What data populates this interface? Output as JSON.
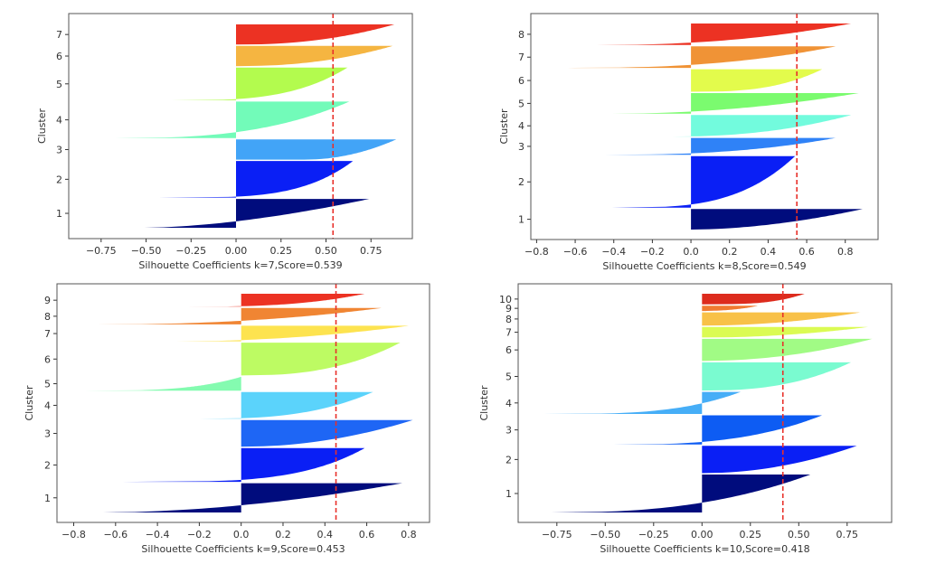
{
  "chart_data": [
    {
      "type": "silhouette",
      "k": 7,
      "score": 0.539,
      "xlabel": "Silhouette Coefficients k=7,Score=0.539",
      "ylabel": "Cluster",
      "xlim": [
        -0.93,
        0.98
      ],
      "xticks": [
        -0.75,
        -0.5,
        -0.25,
        0.0,
        0.25,
        0.5,
        0.75
      ],
      "xtick_labels": [
        "−0.75",
        "−0.50",
        "−0.25",
        "0.00",
        "0.25",
        "0.50",
        "0.75"
      ],
      "clusters": [
        {
          "label": "1",
          "color": "#000c7d",
          "size": 30,
          "min": -0.51,
          "max": 0.74,
          "shape": 0.6
        },
        {
          "label": "2",
          "color": "#0a1ff5",
          "size": 38,
          "min": -0.43,
          "max": 0.65,
          "shape": 0.25
        },
        {
          "label": "3",
          "color": "#42a4f7",
          "size": 21,
          "min": 0.38,
          "max": 0.89,
          "shape": 0.5
        },
        {
          "label": "4",
          "color": "#72fbb9",
          "size": 38,
          "min": -0.71,
          "max": 0.63,
          "shape": 0.35
        },
        {
          "label": "5",
          "color": "#b3fb4e",
          "size": 34,
          "min": -0.36,
          "max": 0.62,
          "shape": 0.3
        },
        {
          "label": "6",
          "color": "#f5b541",
          "size": 21,
          "min": 0.0,
          "max": 0.87,
          "shape": 0.45
        },
        {
          "label": "7",
          "color": "#ec3223",
          "size": 21,
          "min": 0.0,
          "max": 0.88,
          "shape": 0.45
        }
      ]
    },
    {
      "type": "silhouette",
      "k": 8,
      "score": 0.549,
      "xlabel": "Silhouette Coefficients k=8,Score=0.549",
      "ylabel": "Cluster",
      "xlim": [
        -0.83,
        0.97
      ],
      "xticks": [
        -0.8,
        -0.6,
        -0.4,
        -0.2,
        0.0,
        0.2,
        0.4,
        0.6,
        0.8
      ],
      "xtick_labels": [
        "−0.8",
        "−0.6",
        "−0.4",
        "−0.2",
        "0.0",
        "0.2",
        "0.4",
        "0.6",
        "0.8"
      ],
      "clusters": [
        {
          "label": "1",
          "color": "#000c7d",
          "size": 22,
          "min": 0.0,
          "max": 0.89,
          "shape": 0.55
        },
        {
          "label": "2",
          "color": "#0a1ff5",
          "size": 55,
          "min": -0.41,
          "max": 0.54,
          "shape": 0.3
        },
        {
          "label": "3",
          "color": "#2f82f7",
          "size": 18,
          "min": -0.45,
          "max": 0.75,
          "shape": 0.4
        },
        {
          "label": "4",
          "color": "#72fbdd",
          "size": 23,
          "min": -0.1,
          "max": 0.83,
          "shape": 0.45
        },
        {
          "label": "5",
          "color": "#7bfb6f",
          "size": 22,
          "min": -0.41,
          "max": 0.87,
          "shape": 0.5
        },
        {
          "label": "6",
          "color": "#e3fb4c",
          "size": 24,
          "min": 0.0,
          "max": 0.68,
          "shape": 0.35
        },
        {
          "label": "7",
          "color": "#f09336",
          "size": 23,
          "min": -0.64,
          "max": 0.75,
          "shape": 0.4
        },
        {
          "label": "8",
          "color": "#ec3223",
          "size": 23,
          "min": -0.49,
          "max": 0.83,
          "shape": 0.45
        }
      ]
    },
    {
      "type": "silhouette",
      "k": 9,
      "score": 0.453,
      "xlabel": "Silhouette Coefficients k=9,Score=0.453",
      "ylabel": "Cluster",
      "xlim": [
        -0.88,
        0.9
      ],
      "xticks": [
        -0.8,
        -0.6,
        -0.4,
        -0.2,
        0.0,
        0.2,
        0.4,
        0.6,
        0.8
      ],
      "xtick_labels": [
        "−0.8",
        "−0.6",
        "−0.4",
        "−0.2",
        "0.0",
        "0.2",
        "0.4",
        "0.6",
        "0.8"
      ],
      "clusters": [
        {
          "label": "1",
          "color": "#000c7d",
          "size": 34,
          "min": -0.66,
          "max": 0.77,
          "shape": 0.55
        },
        {
          "label": "2",
          "color": "#0a1ff5",
          "size": 39,
          "min": -0.57,
          "max": 0.59,
          "shape": 0.25
        },
        {
          "label": "3",
          "color": "#1e66f5",
          "size": 31,
          "min": 0.0,
          "max": 0.82,
          "shape": 0.5
        },
        {
          "label": "4",
          "color": "#5bd3fb",
          "size": 31,
          "min": -0.2,
          "max": 0.63,
          "shape": 0.35
        },
        {
          "label": "5",
          "color": "#84fbb0",
          "size": 16,
          "min": -0.75,
          "max": -0.0,
          "shape": 0.3
        },
        {
          "label": "6",
          "color": "#bdfb63",
          "size": 38,
          "min": 0.0,
          "max": 0.76,
          "shape": 0.4
        },
        {
          "label": "7",
          "color": "#fde34f",
          "size": 18,
          "min": -0.31,
          "max": 0.8,
          "shape": 0.5
        },
        {
          "label": "8",
          "color": "#f08533",
          "size": 19,
          "min": -0.69,
          "max": 0.67,
          "shape": 0.45
        },
        {
          "label": "9",
          "color": "#ec3223",
          "size": 15,
          "min": -0.27,
          "max": 0.59,
          "shape": 0.35
        }
      ]
    },
    {
      "type": "silhouette",
      "k": 10,
      "score": 0.418,
      "xlabel": "Silhouette Coefficients k=10,Score=0.418",
      "ylabel": "Cluster",
      "xlim": [
        -0.95,
        0.98
      ],
      "xticks": [
        -0.75,
        -0.5,
        -0.25,
        0.0,
        0.25,
        0.5,
        0.75
      ],
      "xtick_labels": [
        "−0.75",
        "−0.50",
        "−0.25",
        "0.00",
        "0.25",
        "0.50",
        "0.75"
      ],
      "clusters": [
        {
          "label": "1",
          "color": "#000c7d",
          "size": 43,
          "min": -0.78,
          "max": 0.56,
          "shape": 0.4
        },
        {
          "label": "2",
          "color": "#0a1ff5",
          "size": 31,
          "min": 0.0,
          "max": 0.8,
          "shape": 0.5
        },
        {
          "label": "3",
          "color": "#0d5cf3",
          "size": 33,
          "min": -0.46,
          "max": 0.62,
          "shape": 0.35
        },
        {
          "label": "4",
          "color": "#46aef7",
          "size": 25,
          "min": -0.82,
          "max": 0.2,
          "shape": 0.3
        },
        {
          "label": "5",
          "color": "#7afbd0",
          "size": 32,
          "min": 0.0,
          "max": 0.77,
          "shape": 0.4
        },
        {
          "label": "6",
          "color": "#a1fb85",
          "size": 25,
          "min": 0.0,
          "max": 0.88,
          "shape": 0.5
        },
        {
          "label": "7",
          "color": "#dbfb53",
          "size": 12,
          "min": 0.0,
          "max": 0.86,
          "shape": 0.5
        },
        {
          "label": "8",
          "color": "#f8c148",
          "size": 15,
          "min": 0.0,
          "max": 0.82,
          "shape": 0.5
        },
        {
          "label": "9",
          "color": "#f07a30",
          "size": 6,
          "min": -0.06,
          "max": 0.29,
          "shape": 0.35
        },
        {
          "label": "10",
          "color": "#dd2b1d",
          "size": 12,
          "min": 0.0,
          "max": 0.53,
          "shape": 0.3
        }
      ]
    }
  ],
  "score_line_color": "#e8302a"
}
